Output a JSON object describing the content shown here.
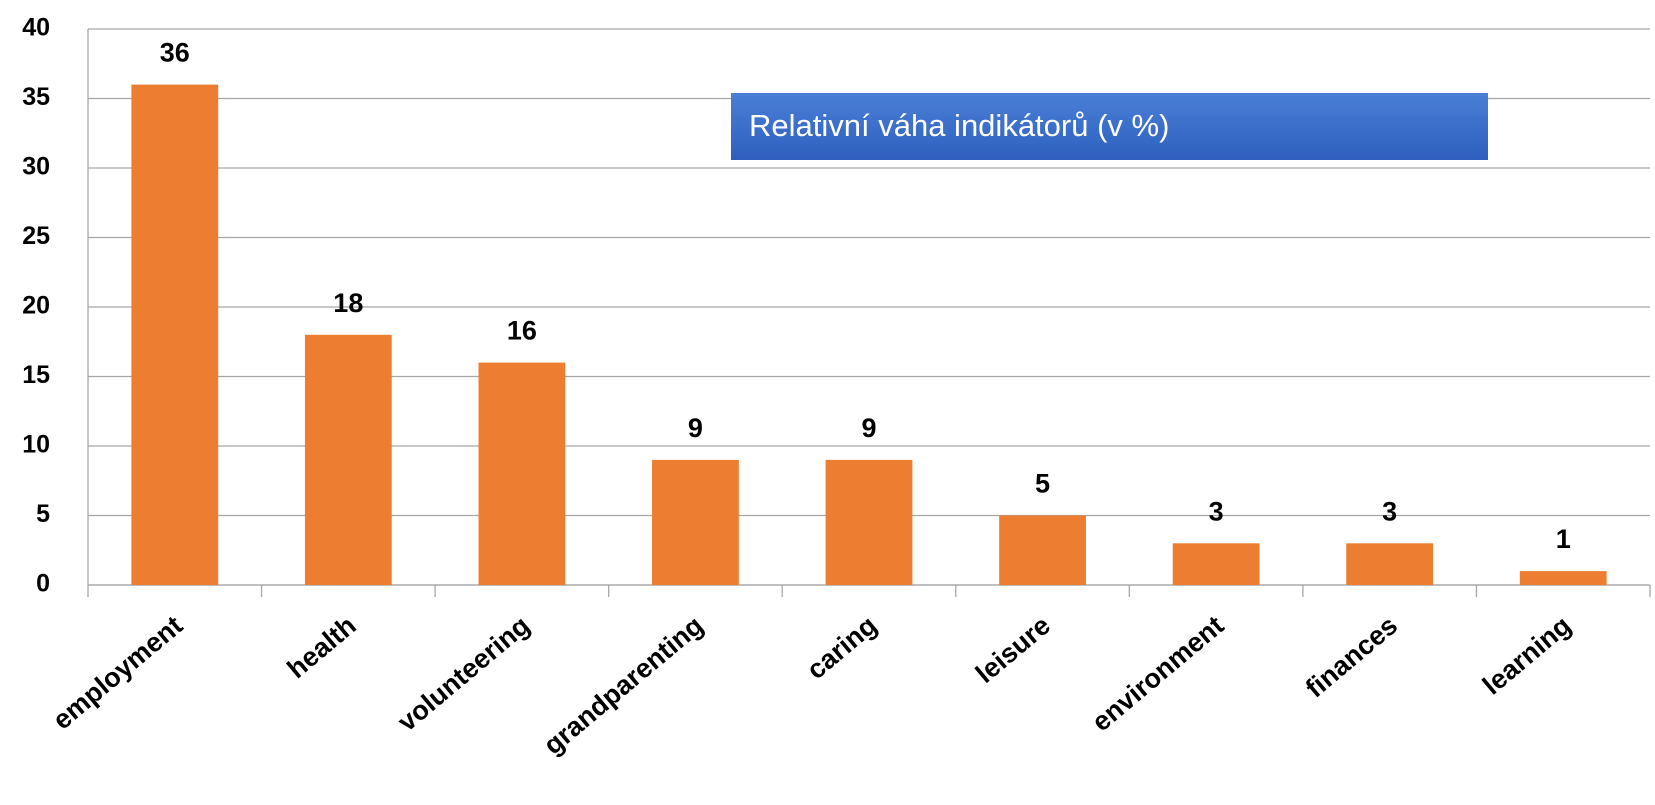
{
  "chart_data": {
    "type": "bar",
    "annotation": "Relativní váha indikátorů (v %)",
    "categories": [
      "employment",
      "health",
      "volunteering",
      "grandparenting",
      "caring",
      "leisure",
      "environment",
      "finances",
      "learning"
    ],
    "values": [
      36,
      18,
      16,
      9,
      9,
      5,
      3,
      3,
      1
    ],
    "color": "#ed7d31",
    "ylim": [
      0,
      40
    ],
    "yticks": [
      0,
      5,
      10,
      15,
      20,
      25,
      30,
      35,
      40
    ],
    "grid": true
  }
}
